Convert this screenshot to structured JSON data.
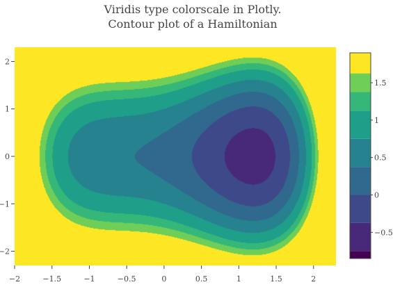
{
  "chart_data": {
    "type": "contour",
    "title_lines": [
      "Viridis type colorscale in Plotly.",
      "Contour plot of a Hamiltonian"
    ],
    "xlabel": "",
    "ylabel": "",
    "xlim": [
      -2,
      2.3
    ],
    "ylim": [
      -2.3,
      2.3
    ],
    "x_ticks": [
      -2,
      -1.5,
      -1,
      -0.5,
      0,
      0.5,
      1,
      1.5,
      2
    ],
    "x_tick_labels": [
      "−2",
      "−1.5",
      "−1",
      "−0.5",
      "0",
      "0.5",
      "1",
      "1.5",
      "2"
    ],
    "y_ticks": [
      -2,
      -1,
      0,
      1,
      2
    ],
    "y_tick_labels": [
      "−2",
      "−1",
      "0",
      "1",
      "2"
    ],
    "colorscale": "Viridis",
    "colorbar": {
      "ticks": [
        -0.5,
        0,
        0.5,
        1,
        1.5
      ],
      "tick_labels": [
        "−0.5",
        "0",
        "0.5",
        "1",
        "1.5"
      ],
      "range": [
        -0.85,
        1.9
      ],
      "bands": [
        {
          "lo": -0.85,
          "hi": -0.75,
          "color": "#440154"
        },
        {
          "lo": -0.75,
          "hi": -0.375,
          "color": "#482878"
        },
        {
          "lo": -0.375,
          "hi": 0.0,
          "color": "#3e4989"
        },
        {
          "lo": 0.0,
          "hi": 0.375,
          "color": "#31688e"
        },
        {
          "lo": 0.375,
          "hi": 0.75,
          "color": "#26828e"
        },
        {
          "lo": 0.75,
          "hi": 1.125,
          "color": "#1f9e89"
        },
        {
          "lo": 1.125,
          "hi": 1.375,
          "color": "#35b779"
        },
        {
          "lo": 1.375,
          "hi": 1.625,
          "color": "#6ece58"
        },
        {
          "lo": 1.625,
          "hi": 1.9,
          "color": "#fde725"
        }
      ]
    },
    "contour_levels": [
      -0.75,
      -0.375,
      0,
      0.375,
      0.75,
      1.125,
      1.375,
      1.625
    ],
    "contour_fill_colors": [
      "#440154",
      "#482878",
      "#3e4989",
      "#31688e",
      "#26828e",
      "#1f9e89",
      "#35b779",
      "#6ece58",
      "#fde725"
    ],
    "grid": false,
    "legend": "colorbar-right"
  }
}
